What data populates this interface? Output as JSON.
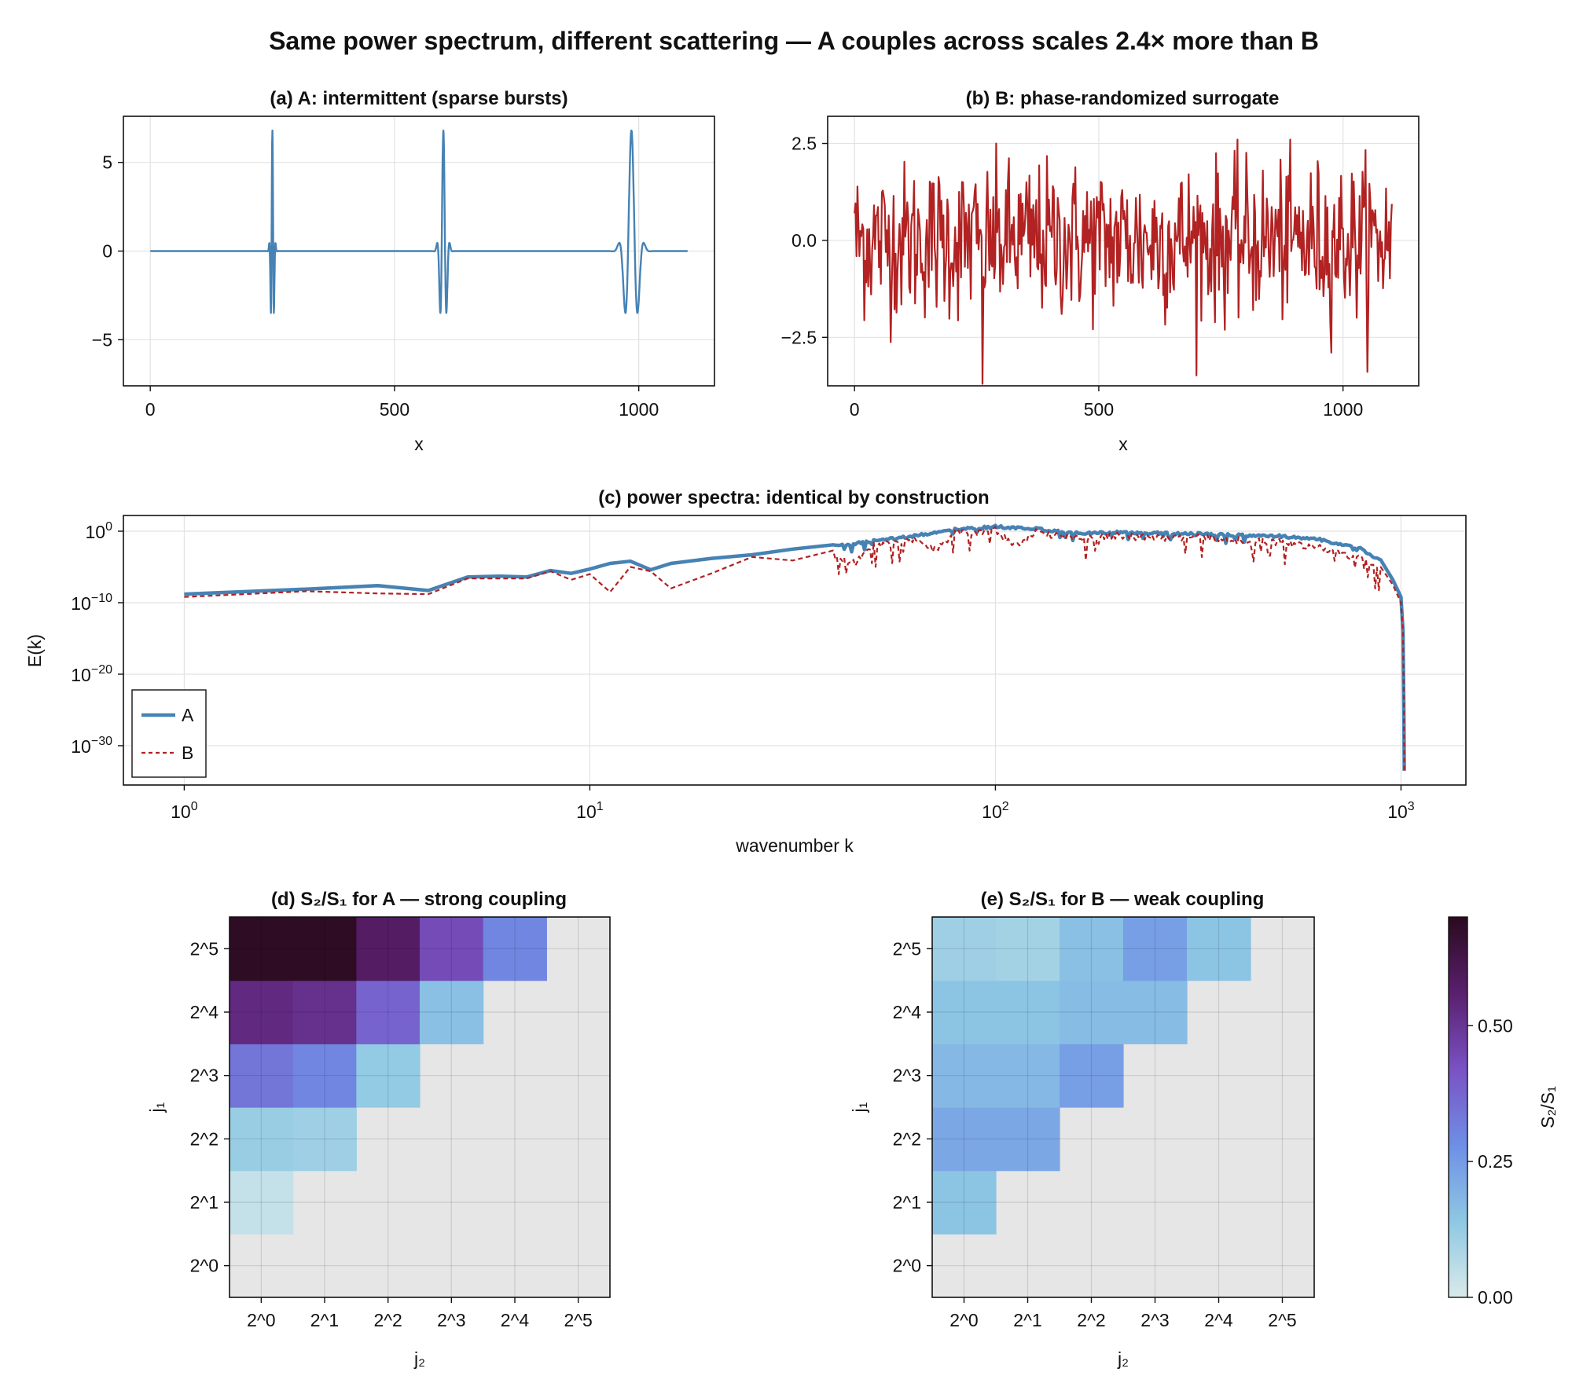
{
  "figure": {
    "title": "Same power spectrum, different scattering — A couples across scales 2.4× more than B"
  },
  "chart_data": [
    {
      "id": "a",
      "type": "line",
      "title": "(a) A: intermittent (sparse bursts)",
      "xlabel": "x",
      "ylabel": "",
      "xlim": [
        -55,
        1155
      ],
      "ylim": [
        -7.6,
        7.6
      ],
      "xticks": [
        0,
        500,
        1000
      ],
      "yticks": [
        -5,
        0,
        5
      ],
      "yticklabels": [
        "−5",
        "0",
        "5"
      ],
      "grid": true,
      "color": "#4682b4",
      "series": [
        {
          "bursts": [
            {
              "center": 250,
              "amplitude": 6.8,
              "width": 4,
              "period": 7
            },
            {
              "center": 600,
              "amplitude": 6.8,
              "width": 8,
              "period": 14
            },
            {
              "center": 985,
              "amplitude": 6.8,
              "width": 16,
              "period": 28
            }
          ],
          "x_range": [
            0,
            1100
          ]
        }
      ]
    },
    {
      "id": "b",
      "type": "line",
      "title": "(b) B: phase-randomized surrogate",
      "xlabel": "x",
      "ylabel": "",
      "xlim": [
        -55,
        1155
      ],
      "ylim": [
        -3.75,
        3.2
      ],
      "xticks": [
        0,
        500,
        1000
      ],
      "yticks": [
        -2.5,
        0,
        2.5
      ],
      "yticklabels": [
        "−2.5",
        "0.0",
        "2.5"
      ],
      "grid": true,
      "color": "#b22222",
      "series": [
        {
          "x_range": [
            0,
            1100
          ],
          "n_points": 550,
          "std": 1.0,
          "min": -3.7,
          "max": 2.6
        }
      ]
    },
    {
      "id": "c",
      "type": "line",
      "scale": "log-log",
      "title": "(c) power spectra: identical by construction",
      "xlabel": "wavenumber k",
      "ylabel": "E(k)",
      "xlim_log10": [
        -0.15,
        3.16
      ],
      "ylim_log10": [
        -35.5,
        2.2
      ],
      "xticks_log10": [
        0,
        1,
        2,
        3
      ],
      "yticks_log10": [
        0,
        -10,
        -20,
        -30
      ],
      "grid": true,
      "legend": {
        "position": "bottom-left",
        "entries": [
          {
            "label": "A",
            "color": "#4682b4",
            "style": "solid"
          },
          {
            "label": "B",
            "color": "#b22222",
            "style": "dashed"
          }
        ]
      },
      "series": [
        {
          "name": "A",
          "color": "#4682b4",
          "points_log10": [
            [
              0,
              -8.8
            ],
            [
              0.301,
              -8.1
            ],
            [
              0.477,
              -7.6
            ],
            [
              0.602,
              -8.3
            ],
            [
              0.699,
              -6.4
            ],
            [
              0.778,
              -6.3
            ],
            [
              0.845,
              -6.4
            ],
            [
              0.903,
              -5.5
            ],
            [
              0.954,
              -5.9
            ],
            [
              1.0,
              -5.3
            ],
            [
              1.05,
              -4.5
            ],
            [
              1.1,
              -4.2
            ],
            [
              1.15,
              -5.4
            ],
            [
              1.2,
              -4.5
            ],
            [
              1.3,
              -3.8
            ],
            [
              1.4,
              -3.3
            ],
            [
              1.5,
              -2.5
            ],
            [
              1.6,
              -1.9
            ],
            [
              1.7,
              -1.2
            ],
            [
              1.8,
              -0.5
            ],
            [
              1.9,
              0.4
            ],
            [
              2.0,
              0.8
            ],
            [
              2.1,
              0.5
            ],
            [
              2.2,
              -0.1
            ],
            [
              2.3,
              0.0
            ],
            [
              2.4,
              -0.1
            ],
            [
              2.5,
              -0.2
            ],
            [
              2.6,
              -0.4
            ],
            [
              2.7,
              -0.5
            ],
            [
              2.8,
              -1.0
            ],
            [
              2.9,
              -2.3
            ],
            [
              2.95,
              -4.0
            ],
            [
              2.98,
              -6.8
            ],
            [
              3.0,
              -9.2
            ],
            [
              3.005,
              -14
            ],
            [
              3.007,
              -25
            ],
            [
              3.008,
              -33.5
            ]
          ]
        },
        {
          "name": "B",
          "color": "#b22222",
          "points_log10": [
            [
              0,
              -9.2
            ],
            [
              0.301,
              -8.4
            ],
            [
              0.477,
              -8.7
            ],
            [
              0.602,
              -8.8
            ],
            [
              0.699,
              -6.6
            ],
            [
              0.778,
              -6.6
            ],
            [
              0.845,
              -6.6
            ],
            [
              0.903,
              -5.6
            ],
            [
              0.954,
              -6.8
            ],
            [
              1.0,
              -6.0
            ],
            [
              1.05,
              -8.5
            ],
            [
              1.1,
              -5.0
            ],
            [
              1.15,
              -5.6
            ],
            [
              1.2,
              -8.0
            ],
            [
              1.3,
              -5.9
            ],
            [
              1.4,
              -3.6
            ],
            [
              1.5,
              -4.1
            ],
            [
              1.6,
              -2.7
            ],
            [
              1.65,
              -4.0
            ],
            [
              1.7,
              -1.5
            ],
            [
              1.8,
              -0.8
            ],
            [
              1.85,
              -2.2
            ],
            [
              1.9,
              0.1
            ],
            [
              2.0,
              0.6
            ],
            [
              2.05,
              -1.8
            ],
            [
              2.1,
              0.3
            ],
            [
              2.2,
              -0.6
            ],
            [
              2.3,
              -0.2
            ],
            [
              2.4,
              -0.5
            ],
            [
              2.5,
              -0.4
            ],
            [
              2.6,
              -0.8
            ],
            [
              2.7,
              -1.1
            ],
            [
              2.8,
              -1.9
            ],
            [
              2.9,
              -3.4
            ],
            [
              2.95,
              -5.0
            ],
            [
              2.98,
              -7.5
            ],
            [
              3.0,
              -10.0
            ],
            [
              3.005,
              -14
            ],
            [
              3.007,
              -25
            ],
            [
              3.008,
              -33.5
            ]
          ]
        }
      ]
    },
    {
      "id": "d",
      "type": "heatmap",
      "title": "(d) S₂/S₁ for A — strong coupling",
      "xlabel": "j₂",
      "ylabel": "j₁",
      "xticklabels": [
        "2^0",
        "2^1",
        "2^2",
        "2^3",
        "2^4",
        "2^5"
      ],
      "yticklabels": [
        "2^0",
        "2^1",
        "2^2",
        "2^3",
        "2^4",
        "2^5"
      ],
      "grid": true,
      "missing_color": "#e6e6e6",
      "rows_j1": [
        [
          null,
          null,
          null,
          null,
          null,
          null
        ],
        [
          0.04,
          null,
          null,
          null,
          null,
          null
        ],
        [
          0.12,
          0.11,
          null,
          null,
          null,
          null
        ],
        [
          0.34,
          0.3,
          0.13,
          null,
          null,
          null
        ],
        [
          0.53,
          0.51,
          0.38,
          0.16,
          null,
          null
        ],
        [
          0.69,
          0.69,
          0.58,
          0.44,
          0.3,
          null
        ]
      ]
    },
    {
      "id": "e",
      "type": "heatmap",
      "title": "(e) S₂/S₁ for B — weak coupling",
      "xlabel": "j₂",
      "ylabel": "j₁",
      "xticklabels": [
        "2^0",
        "2^1",
        "2^2",
        "2^3",
        "2^4",
        "2^5"
      ],
      "yticklabels": [
        "2^0",
        "2^1",
        "2^2",
        "2^3",
        "2^4",
        "2^5"
      ],
      "grid": true,
      "missing_color": "#e6e6e6",
      "rows_j1": [
        [
          null,
          null,
          null,
          null,
          null,
          null
        ],
        [
          0.15,
          null,
          null,
          null,
          null,
          null
        ],
        [
          0.22,
          0.22,
          null,
          null,
          null,
          null
        ],
        [
          0.18,
          0.18,
          0.24,
          null,
          null,
          null
        ],
        [
          0.15,
          0.15,
          0.17,
          0.17,
          null,
          null
        ],
        [
          0.11,
          0.1,
          0.16,
          0.24,
          0.15,
          null
        ]
      ]
    }
  ],
  "colorbar": {
    "label": "S₂/S₁",
    "range": [
      0,
      0.7
    ],
    "ticks": [
      0.0,
      0.25,
      0.5
    ],
    "ticklabels": [
      "0.00",
      "0.25",
      "0.50"
    ],
    "stops": [
      "#d9eaea",
      "#8ec8e3",
      "#6e8fe6",
      "#7a52c4",
      "#5a1f6e",
      "#2a0a1e"
    ]
  }
}
